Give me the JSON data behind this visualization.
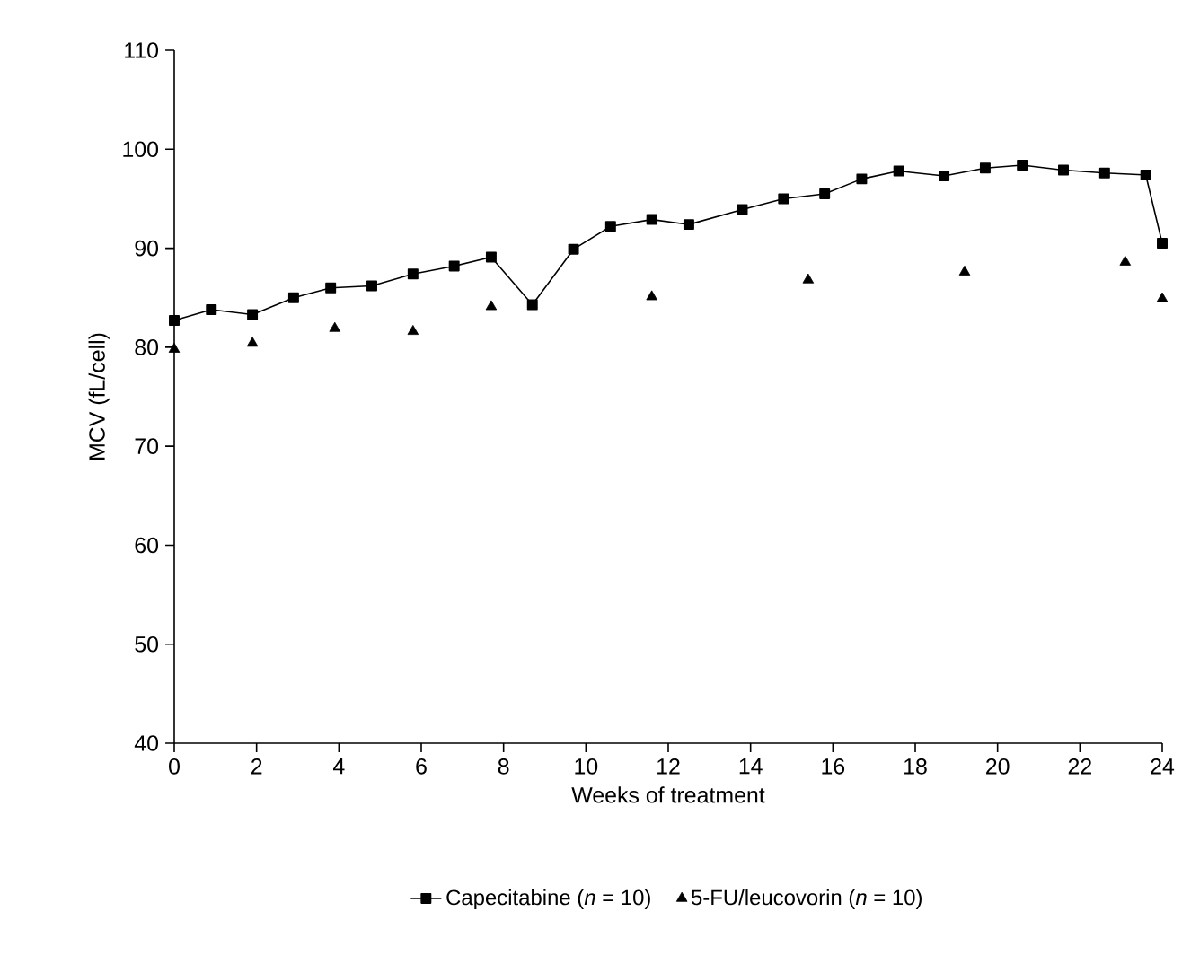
{
  "chart_data": {
    "type": "line",
    "xlabel": "Weeks of treatment",
    "ylabel": "MCV (fL/cell)",
    "xlim": [
      0,
      24
    ],
    "xticks": [
      0,
      2,
      4,
      6,
      8,
      10,
      12,
      14,
      16,
      18,
      20,
      22,
      24
    ],
    "ylim": [
      40,
      110
    ],
    "yticks": [
      40,
      50,
      60,
      70,
      80,
      90,
      100,
      110
    ],
    "grid": false,
    "legend": "bottom",
    "series": [
      {
        "name": "Capecitabine (*n* = 10)",
        "marker": "square",
        "color": "#000000",
        "x": [
          0,
          0.9,
          1.9,
          2.9,
          3.8,
          4.8,
          5.8,
          6.8,
          7.7,
          8.7,
          9.7,
          10.6,
          11.6,
          12.5,
          13.8,
          14.8,
          15.8,
          16.7,
          17.6,
          18.7,
          19.7,
          20.6,
          21.6,
          22.6,
          23.6,
          24
        ],
        "values": [
          82.7,
          83.8,
          83.3,
          85.0,
          86.0,
          86.2,
          87.4,
          88.2,
          89.1,
          84.3,
          89.9,
          92.2,
          92.9,
          92.4,
          93.9,
          95.0,
          95.5,
          97.0,
          97.8,
          97.3,
          98.1,
          98.4,
          97.9,
          97.6,
          97.4,
          90.5
        ]
      },
      {
        "name": "5-FU/leucovorin (*n* = 10)",
        "type": "scatter",
        "marker": "triangle",
        "color": "#000000",
        "x": [
          0,
          1.9,
          3.9,
          5.8,
          7.7,
          11.6,
          15.4,
          19.2,
          23.1,
          24
        ],
        "values": [
          79.8,
          80.4,
          81.9,
          81.6,
          84.1,
          85.1,
          86.8,
          87.6,
          88.6,
          84.9
        ]
      }
    ]
  }
}
